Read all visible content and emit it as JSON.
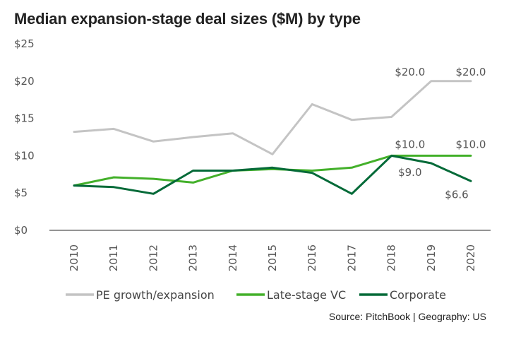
{
  "chart_data": {
    "type": "line",
    "title": "Median expansion-stage deal sizes ($M) by type",
    "source": "Source: PitchBook | Geography: US",
    "x": [
      "2010",
      "2011",
      "2012",
      "2013",
      "2014",
      "2015",
      "2016",
      "2017",
      "2018",
      "2019",
      "2020"
    ],
    "ylim": [
      0,
      25
    ],
    "yticks": [
      0,
      5,
      10,
      15,
      20,
      25
    ],
    "ytick_labels": [
      "$0",
      "$5",
      "$10",
      "$15",
      "$20",
      "$25"
    ],
    "grid": false,
    "legend_position": "bottom",
    "series": [
      {
        "name": "PE growth/expansion",
        "color": "#c4c4c4",
        "values": [
          13.2,
          13.6,
          11.9,
          12.5,
          13.0,
          10.2,
          16.9,
          14.8,
          15.2,
          20.0,
          20.0
        ]
      },
      {
        "name": "Late-stage VC",
        "color": "#43b02a",
        "values": [
          6.0,
          7.1,
          6.9,
          6.4,
          8.0,
          8.2,
          8.0,
          8.4,
          10.0,
          10.0,
          10.0
        ]
      },
      {
        "name": "Corporate",
        "color": "#046a38",
        "values": [
          6.0,
          5.8,
          4.9,
          8.0,
          8.0,
          8.4,
          7.7,
          4.9,
          10.0,
          9.0,
          6.6
        ]
      }
    ],
    "annotations": [
      {
        "series": 0,
        "index": 9,
        "text": "$20.0"
      },
      {
        "series": 0,
        "index": 10,
        "text": "$20.0"
      },
      {
        "series": 1,
        "index": 9,
        "text": "$10.0"
      },
      {
        "series": 1,
        "index": 10,
        "text": "$10.0"
      },
      {
        "series": 2,
        "index": 9,
        "text": "$9.0"
      },
      {
        "series": 2,
        "index": 10,
        "text": "$6.6"
      }
    ]
  }
}
